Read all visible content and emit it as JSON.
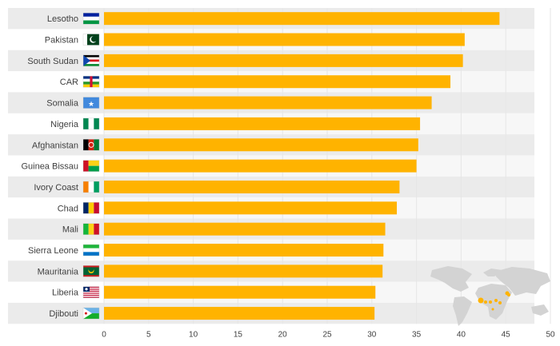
{
  "chart_data": {
    "type": "bar",
    "orientation": "horizontal",
    "title": "",
    "xlabel": "",
    "ylabel": "",
    "categories": [
      "Lesotho",
      "Pakistan",
      "South Sudan",
      "CAR",
      "Somalia",
      "Nigeria",
      "Afghanistan",
      "Guinea Bissau",
      "Ivory Coast",
      "Chad",
      "Mali",
      "Sierra Leone",
      "Mauritania",
      "Liberia",
      "Djibouti"
    ],
    "values": [
      44.3,
      40.4,
      40.2,
      38.8,
      36.7,
      35.4,
      35.2,
      35.0,
      33.1,
      32.8,
      31.5,
      31.3,
      31.2,
      30.4,
      30.3
    ],
    "xlim": [
      0,
      50
    ],
    "xticks": [
      0,
      5,
      10,
      15,
      20,
      25,
      30,
      35,
      40,
      45,
      50
    ],
    "grid": true,
    "bar_color": "#FFB300",
    "row_stripe_color": "#EBEBEB",
    "grid_color": "#E6E6E6",
    "decorations": {
      "flags": [
        "lesotho-flag-icon",
        "pakistan-flag-icon",
        "south-sudan-flag-icon",
        "car-flag-icon",
        "somalia-flag-icon",
        "nigeria-flag-icon",
        "afghanistan-flag-icon",
        "guinea-bissau-flag-icon",
        "ivory-coast-flag-icon",
        "chad-flag-icon",
        "mali-flag-icon",
        "sierra-leone-flag-icon",
        "mauritania-flag-icon",
        "liberia-flag-icon",
        "djibouti-flag-icon"
      ],
      "map": "world-map-icon"
    }
  }
}
